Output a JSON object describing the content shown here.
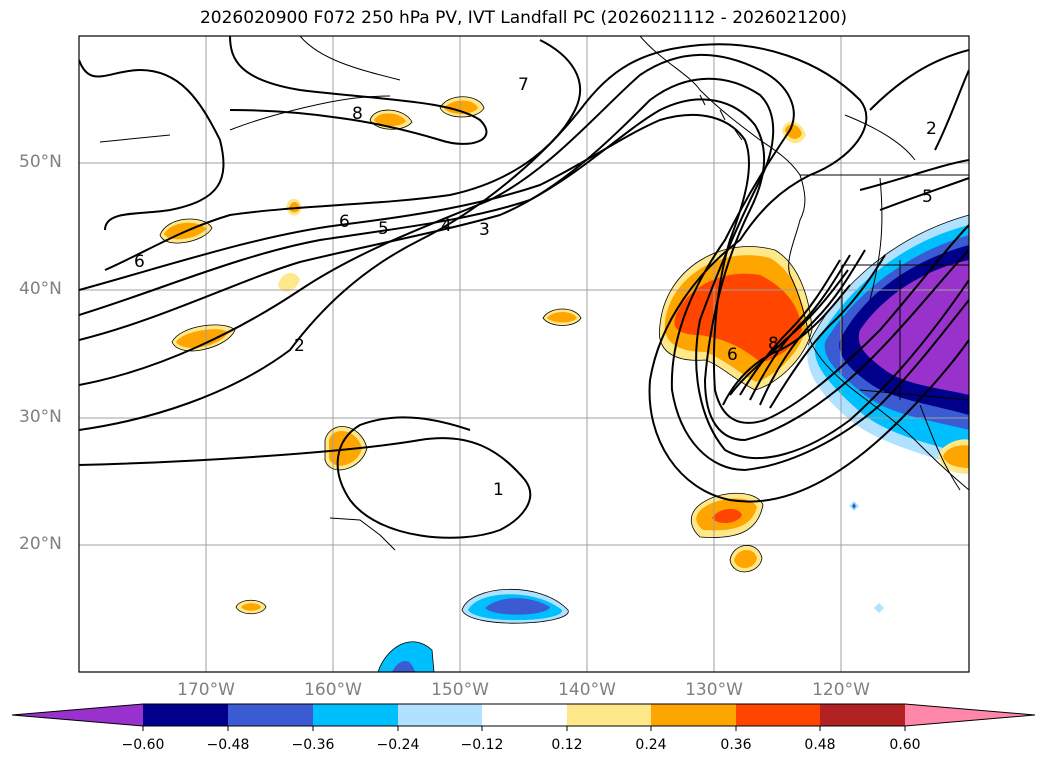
{
  "title": "2026020900 F072 250 hPa PV, IVT Landfall PC (2026021112 - 2026021200)",
  "lat_labels": [
    "50°N",
    "40°N",
    "30°N",
    "20°N"
  ],
  "lon_labels": [
    "170°W",
    "160°W",
    "150°W",
    "140°W",
    "130°W",
    "120°W"
  ],
  "contour_labels": [
    "8",
    "7",
    "6",
    "5",
    "4",
    "3",
    "2",
    "1",
    "6",
    "5",
    "2",
    "6",
    "8"
  ],
  "colorbar": {
    "ticks": [
      "−0.60",
      "−0.48",
      "−0.36",
      "−0.24",
      "−0.12",
      "0.12",
      "0.24",
      "0.36",
      "0.48",
      "0.60"
    ],
    "colors": [
      "#9932cc",
      "#00008b",
      "#3b5bd2",
      "#00bfff",
      "#b0e2ff",
      "#ffffff",
      "#ffe88a",
      "#ffa500",
      "#ff4500",
      "#b22222",
      "#ff88aa"
    ]
  },
  "colors": {
    "positive_1": "#ffe88a",
    "positive_2": "#ffa500",
    "positive_3": "#ff4500",
    "negative_1": "#b0e2ff",
    "negative_2": "#00bfff",
    "negative_3": "#3b5bd2",
    "negative_4": "#00008b",
    "negative_5": "#9932cc"
  }
}
